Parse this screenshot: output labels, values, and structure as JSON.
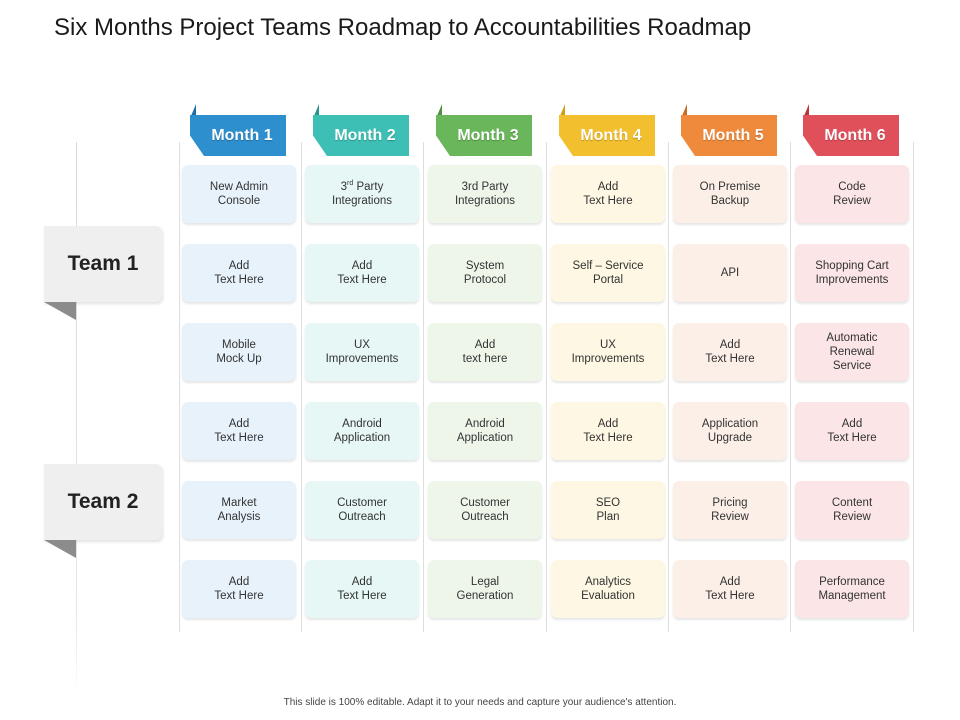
{
  "title": "Six Months Project Teams Roadmap to Accountabilities Roadmap",
  "teams": [
    {
      "label": "Team 1"
    },
    {
      "label": "Team 2"
    }
  ],
  "months": [
    {
      "label": "Month 1",
      "color": "#2e8fcf",
      "flag": "#1d6fa6",
      "card_bg": "#e7f2fb",
      "cells": [
        "New Admin\nConsole",
        "Add\nText Here",
        "Mobile\nMock Up",
        "Add\nText Here",
        "Market\nAnalysis",
        "Add\nText Here"
      ]
    },
    {
      "label": "Month 2",
      "color": "#3dbfb5",
      "flag": "#28958d",
      "card_bg": "#e6f7f6",
      "cells": [
        "__3rd__",
        "Add\nText Here",
        "UX\nImprovements",
        "Android\nApplication",
        "Customer\nOutreach",
        "Add\nText Here"
      ]
    },
    {
      "label": "Month 3",
      "color": "#6ab65a",
      "flag": "#4d9140",
      "card_bg": "#eef6ea",
      "cells": [
        "3rd Party\nIntegrations",
        "System\nProtocol",
        "Add\ntext here",
        "Android\nApplication",
        "Customer\nOutreach",
        "Legal\nGeneration"
      ]
    },
    {
      "label": "Month 4",
      "color": "#f2bf2e",
      "flag": "#cf9e16",
      "card_bg": "#fdf7e3",
      "cells": [
        "Add\nText Here",
        "Self – Service\nPortal",
        "UX\nImprovements",
        "Add\nText Here",
        "SEO\nPlan",
        "Analytics\nEvaluation"
      ]
    },
    {
      "label": "Month 5",
      "color": "#ef8a3c",
      "flag": "#c86b22",
      "card_bg": "#fcefe7",
      "cells": [
        "On Premise\nBackup",
        "API",
        "Add\nText Here",
        "Application\nUpgrade",
        "Pricing\nReview",
        "Add\nText Here"
      ]
    },
    {
      "label": "Month 6",
      "color": "#e0505a",
      "flag": "#b8353e",
      "card_bg": "#fbe5e7",
      "cells": [
        "Code\nReview",
        "Shopping Cart\nImprovements",
        "Automatic\nRenewal\nService",
        "Add\nText Here",
        "Content\nReview",
        "Performance\nManagement"
      ]
    }
  ],
  "special": {
    "third_party_sup": "rd",
    "third_party_pre": "3",
    "third_party_post": " Party\nIntegrations"
  },
  "footer": "This slide is 100% editable. Adapt it to your needs and capture your audience's attention."
}
